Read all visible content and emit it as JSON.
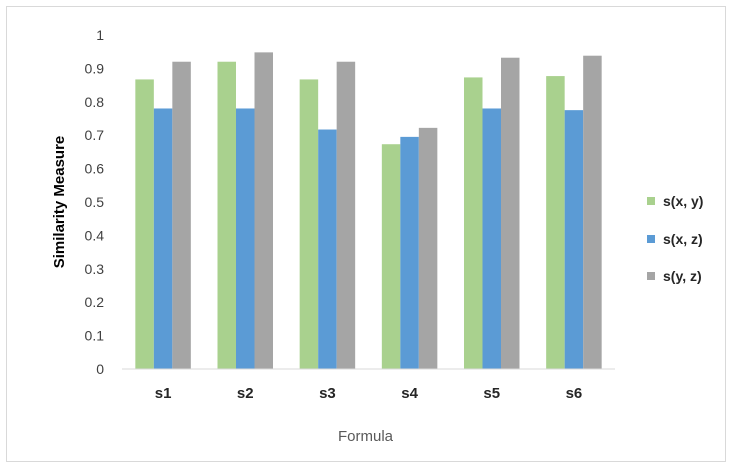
{
  "chart_data": {
    "type": "bar",
    "categories": [
      "s1",
      "s2",
      "s3",
      "s4",
      "s5",
      "s6"
    ],
    "series": [
      {
        "name": "s(x, y)",
        "values": [
          0.867,
          0.92,
          0.867,
          0.673,
          0.873,
          0.877
        ],
        "color": "#a9d18e"
      },
      {
        "name": "s(x, z)",
        "values": [
          0.78,
          0.78,
          0.717,
          0.695,
          0.78,
          0.775
        ],
        "color": "#5b9bd5"
      },
      {
        "name": "s(y, z)",
        "values": [
          0.92,
          0.948,
          0.92,
          0.722,
          0.932,
          0.938
        ],
        "color": "#a5a5a5"
      }
    ],
    "xlabel": "Formula",
    "ylabel": "Similarity Measure",
    "ylim": [
      0,
      1
    ],
    "yticks": [
      0,
      0.1,
      0.2,
      0.3,
      0.4,
      0.5,
      0.6,
      0.7,
      0.8,
      0.9,
      1
    ],
    "ytick_labels": [
      "0",
      "0.1",
      "0.2",
      "0.3",
      "0.4",
      "0.5",
      "0.6",
      "0.7",
      "0.8",
      "0.9",
      "1"
    ],
    "grid": false,
    "legend_position": "right"
  }
}
